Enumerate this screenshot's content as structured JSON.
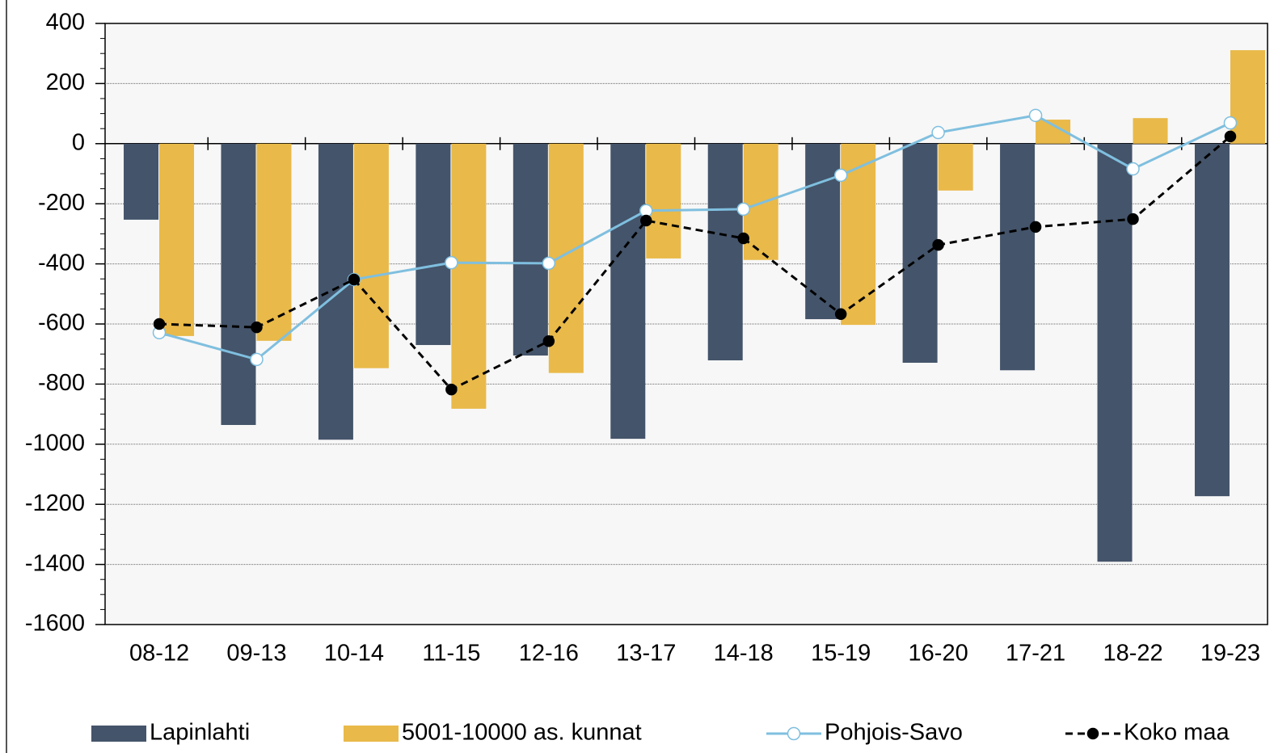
{
  "chart_data": {
    "type": "combo",
    "categories": [
      "08-12",
      "09-13",
      "10-14",
      "11-15",
      "12-16",
      "13-17",
      "14-18",
      "15-19",
      "16-20",
      "17-21",
      "18-22",
      "19-23"
    ],
    "series": [
      {
        "name": "Lapinlahti",
        "type": "bar",
        "color": "#44546a",
        "values": [
          -253,
          -936,
          -985,
          -670,
          -705,
          -982,
          -721,
          -584,
          -729,
          -754,
          -1391,
          -1173
        ]
      },
      {
        "name": "5001-10000 as. kunnat",
        "type": "bar",
        "color": "#e9b949",
        "values": [
          -640,
          -656,
          -747,
          -882,
          -763,
          -382,
          -387,
          -603,
          -156,
          80,
          85,
          311
        ]
      },
      {
        "name": "Pohjois-Savo",
        "type": "line",
        "color": "#7fbfdf",
        "marker": "open",
        "dashed": false,
        "values": [
          -629,
          -718,
          -452,
          -396,
          -398,
          -223,
          -218,
          -105,
          37,
          94,
          -84,
          69
        ]
      },
      {
        "name": "Koko maa",
        "type": "line",
        "color": "#000000",
        "marker": "filled",
        "dashed": true,
        "values": [
          -600,
          -611,
          -452,
          -818,
          -657,
          -256,
          -315,
          -567,
          -337,
          -277,
          -251,
          24
        ]
      }
    ],
    "ylim": [
      -1600,
      400
    ],
    "yticks": [
      -1600,
      -1400,
      -1200,
      -1000,
      -800,
      -600,
      -400,
      -200,
      0,
      200,
      400
    ],
    "grid": true,
    "legend": "bottom"
  }
}
